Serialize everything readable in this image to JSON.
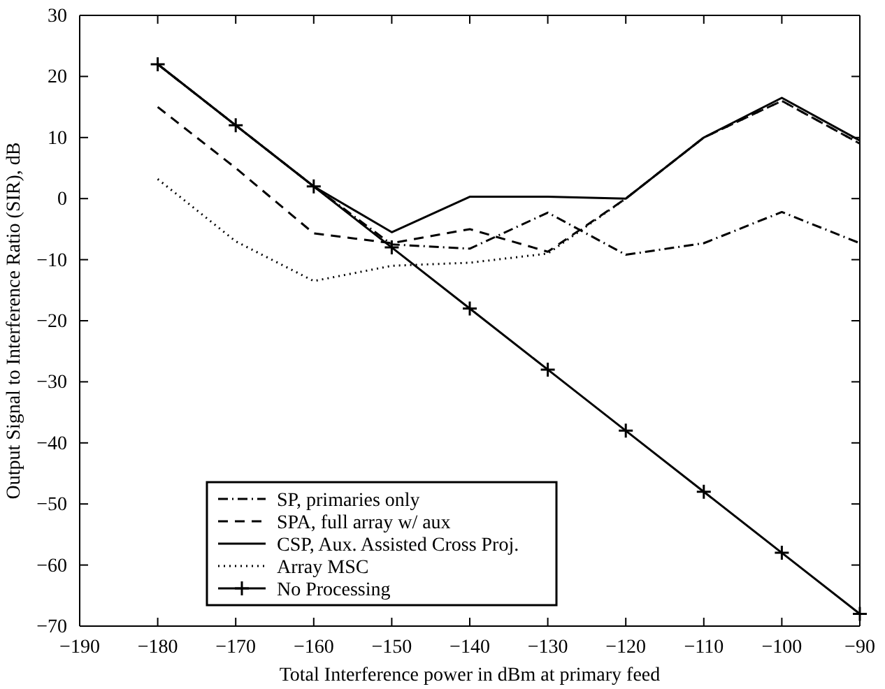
{
  "chart_data": {
    "type": "line",
    "xlabel": "Total Interference power in dBm at primary feed",
    "ylabel": "Output Signal to Interference Ratio (SIR), dB",
    "x": [
      -180,
      -170,
      -160,
      -150,
      -140,
      -130,
      -120,
      -110,
      -100,
      -90
    ],
    "xlim": [
      -190,
      -90
    ],
    "xticks": [
      -190,
      -180,
      -170,
      -160,
      -150,
      -140,
      -130,
      -120,
      -110,
      -100,
      -90
    ],
    "ylim": [
      -70,
      30
    ],
    "yticks": [
      -70,
      -60,
      -50,
      -40,
      -30,
      -20,
      -10,
      0,
      10,
      20,
      30
    ],
    "legend": "bottom left",
    "grid": false,
    "series": [
      {
        "name": "SP, primaries only",
        "color": "#000000",
        "line_style": "dashdot",
        "marker": "none",
        "values": [
          22,
          12,
          2,
          -7.5,
          -8.2,
          -2.3,
          -9.2,
          -7.3,
          -2.2,
          -7.3
        ]
      },
      {
        "name": "SPA, full array w/ aux",
        "color": "#000000",
        "line_style": "dashed",
        "marker": "none",
        "values": [
          15,
          5,
          -5.7,
          -7.3,
          -5,
          -8.7,
          0,
          10,
          16,
          9
        ]
      },
      {
        "name": "CSP, Aux. Assisted Cross Proj.",
        "color": "#000000",
        "line_style": "solid",
        "marker": "none",
        "values": [
          22,
          12,
          2,
          -5.5,
          0.3,
          0.3,
          0,
          10,
          16.5,
          9.5
        ]
      },
      {
        "name": "Array MSC",
        "color": "#000000",
        "line_style": "dotted",
        "marker": "none",
        "values": [
          3.2,
          -7,
          -13.5,
          -11,
          -10.5,
          -9,
          0,
          10,
          16,
          9
        ]
      },
      {
        "name": "No Processing",
        "color": "#000000",
        "line_style": "solid",
        "marker": "cross",
        "values": [
          22,
          12,
          2,
          -8,
          -18,
          -28,
          -38,
          -48,
          -58,
          -68
        ]
      }
    ]
  }
}
